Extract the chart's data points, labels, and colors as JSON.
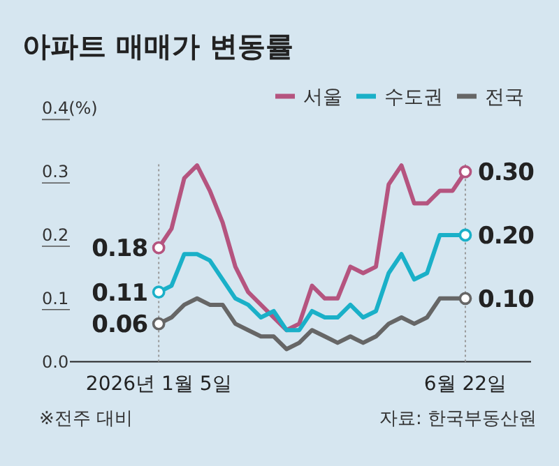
{
  "chart_data": {
    "type": "line",
    "title": "아파트 매매가 변동률",
    "x": [
      "2026-01-05",
      "2026-01-12",
      "2026-01-19",
      "2026-01-26",
      "2026-02-02",
      "2026-02-09",
      "2026-02-16",
      "2026-02-23",
      "2026-03-02",
      "2026-03-09",
      "2026-03-16",
      "2026-03-23",
      "2026-03-30",
      "2026-04-06",
      "2026-04-13",
      "2026-04-20",
      "2026-04-27",
      "2026-05-04",
      "2026-05-11",
      "2026-05-18",
      "2026-05-25",
      "2026-06-01",
      "2026-06-08",
      "2026-06-15",
      "2026-06-22"
    ],
    "xlim": [
      "2025-11-02",
      "2026-07-28"
    ],
    "xticks": [
      {
        "value": "2026-01-05",
        "label": "2026년 1월 5일"
      },
      {
        "value": "2026-06-22",
        "label": "6월 22일"
      }
    ],
    "ylim": [
      0,
      0.4
    ],
    "yticks": [
      {
        "value": 0,
        "label": "0.0"
      },
      0.1,
      0.2,
      0.3,
      {
        "value": 0.4,
        "label": "0.4(%)"
      }
    ],
    "series": [
      {
        "name": "서울",
        "color": "#b5547f",
        "values": [
          0.18,
          0.21,
          0.29,
          0.31,
          0.27,
          0.22,
          0.15,
          0.11,
          0.09,
          0.07,
          0.05,
          0.06,
          0.12,
          0.1,
          0.1,
          0.15,
          0.14,
          0.15,
          0.28,
          0.31,
          0.25,
          0.25,
          0.27,
          0.27,
          0.3
        ],
        "value_labels": [
          "0.18",
          null,
          null,
          null,
          null,
          null,
          null,
          null,
          null,
          null,
          null,
          null,
          null,
          null,
          null,
          null,
          null,
          null,
          null,
          null,
          null,
          null,
          null,
          null,
          "0.30"
        ]
      },
      {
        "name": "수도권",
        "color": "#1ab0c8",
        "values": [
          0.11,
          0.12,
          0.17,
          0.17,
          0.16,
          0.13,
          0.1,
          0.09,
          0.07,
          0.08,
          0.05,
          0.05,
          0.08,
          0.07,
          0.07,
          0.09,
          0.07,
          0.08,
          0.14,
          0.17,
          0.13,
          0.14,
          0.2,
          0.2,
          0.2
        ],
        "value_labels": [
          "0.11",
          null,
          null,
          null,
          null,
          null,
          null,
          null,
          null,
          null,
          null,
          null,
          null,
          null,
          null,
          null,
          null,
          null,
          null,
          null,
          null,
          null,
          null,
          null,
          "0.20"
        ]
      },
      {
        "name": "전국",
        "color": "#666666",
        "values": [
          0.06,
          0.07,
          0.09,
          0.1,
          0.09,
          0.09,
          0.06,
          0.05,
          0.04,
          0.04,
          0.02,
          0.03,
          0.05,
          0.04,
          0.03,
          0.04,
          0.03,
          0.04,
          0.06,
          0.07,
          0.06,
          0.07,
          0.1,
          0.1,
          0.1
        ],
        "value_labels": [
          "0.06",
          null,
          null,
          null,
          null,
          null,
          null,
          null,
          null,
          null,
          null,
          null,
          null,
          null,
          null,
          null,
          null,
          null,
          null,
          null,
          null,
          null,
          null,
          null,
          "0.10"
        ]
      }
    ],
    "ref_lines": [
      {
        "axis": "x",
        "value": "2026-01-05",
        "line_style": "dotted",
        "color": "#999999"
      },
      {
        "axis": "x",
        "value": "2026-06-22",
        "line_style": "dotted",
        "color": "#999999"
      }
    ],
    "legend": "top right",
    "grid": false,
    "annotations": [
      "※전주 대비",
      "자료: 한국부동산원"
    ]
  }
}
